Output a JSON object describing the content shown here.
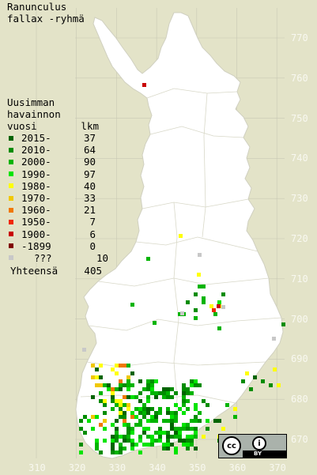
{
  "title": {
    "line1": "Ranunculus",
    "line2": "fallax -ryhmä"
  },
  "legend": {
    "heading": [
      "Uusimman",
      "havainnon"
    ],
    "col_label": "vuosi",
    "col_count": "lkm",
    "items": [
      {
        "label": "2015-",
        "count": "37",
        "color": "#006400"
      },
      {
        "label": "2010-",
        "count": "64",
        "color": "#008c00"
      },
      {
        "label": "2000-",
        "count": "90",
        "color": "#00b400"
      },
      {
        "label": "1990-",
        "count": "97",
        "color": "#00e400"
      },
      {
        "label": "1980-",
        "count": "40",
        "color": "#ffff00"
      },
      {
        "label": "1970-",
        "count": "33",
        "color": "#f0c800"
      },
      {
        "label": "1960-",
        "count": "21",
        "color": "#f07800"
      },
      {
        "label": "1950-",
        "count": "7",
        "color": "#f02800"
      },
      {
        "label": "1900-",
        "count": "6",
        "color": "#c80000"
      },
      {
        "label": "-1899",
        "count": "0",
        "color": "#800000"
      },
      {
        "label": "???",
        "count": "10",
        "color": "#c8c8c8"
      }
    ],
    "total_label": "Yhteensä",
    "total_count": "405"
  },
  "lat_labels": [
    "770",
    "760",
    "750",
    "740",
    "730",
    "720",
    "710",
    "700",
    "690",
    "680",
    "670"
  ],
  "lon_labels": [
    "310",
    "320",
    "330",
    "340",
    "350",
    "360",
    "370"
  ],
  "license": {
    "cc": "cc",
    "by": "BY"
  },
  "colors": {
    "background": "#e3e3c8",
    "land": "#ffffff",
    "grid": "#c8c8b4"
  }
}
